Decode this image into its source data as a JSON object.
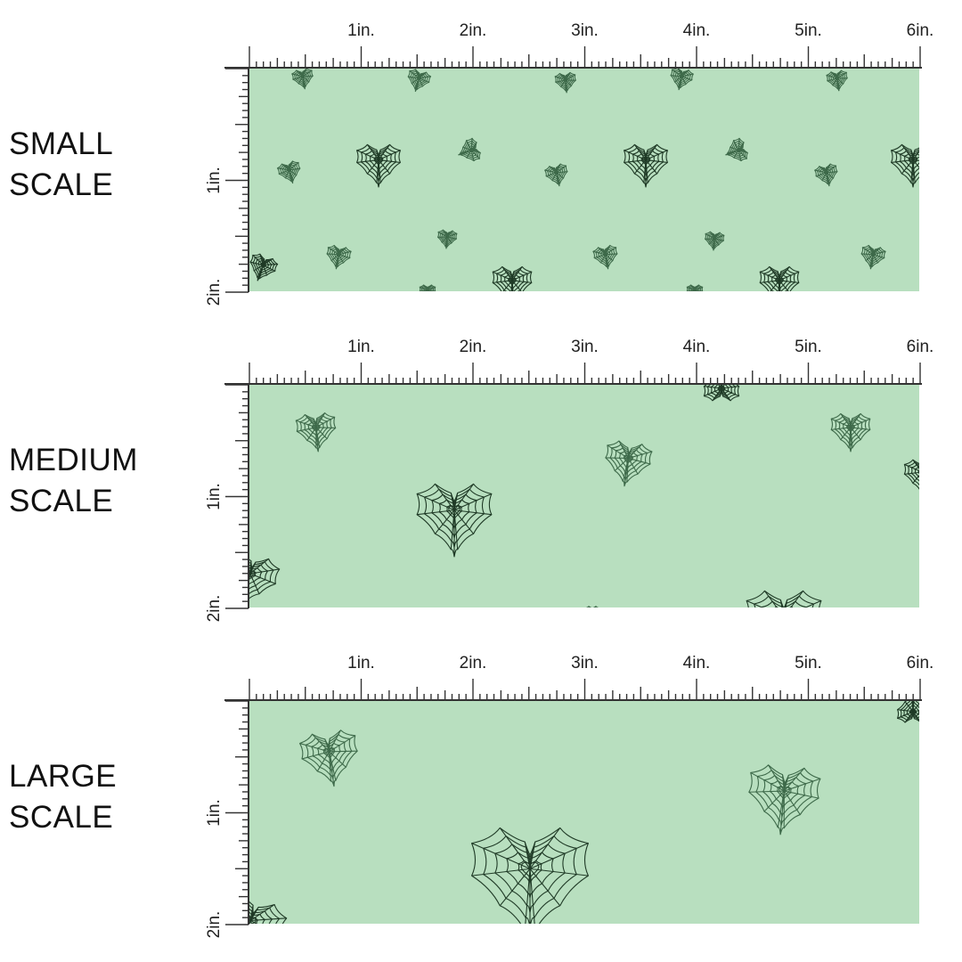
{
  "colors": {
    "fabric_background": "#b8dfbf",
    "web_dark": "#1f3a26",
    "web_medium": "#3e6a4a",
    "ruler": "#333333"
  },
  "ruler_units": {
    "horizontal": [
      "1in.",
      "2in.",
      "3in.",
      "4in.",
      "5in.",
      "6in."
    ],
    "vertical": [
      "1in.",
      "2in."
    ]
  },
  "panels": [
    {
      "id": "small",
      "label": "SMALL\nSCALE",
      "motif_scale": 0.45,
      "motif": "heart-spiderweb-icon"
    },
    {
      "id": "medium",
      "label": "MEDIUM\nSCALE",
      "motif_scale": 0.75,
      "motif": "heart-spiderweb-icon"
    },
    {
      "id": "large",
      "label": "LARGE\nSCALE",
      "motif_scale": 1.1,
      "motif": "heart-spiderweb-icon"
    }
  ]
}
